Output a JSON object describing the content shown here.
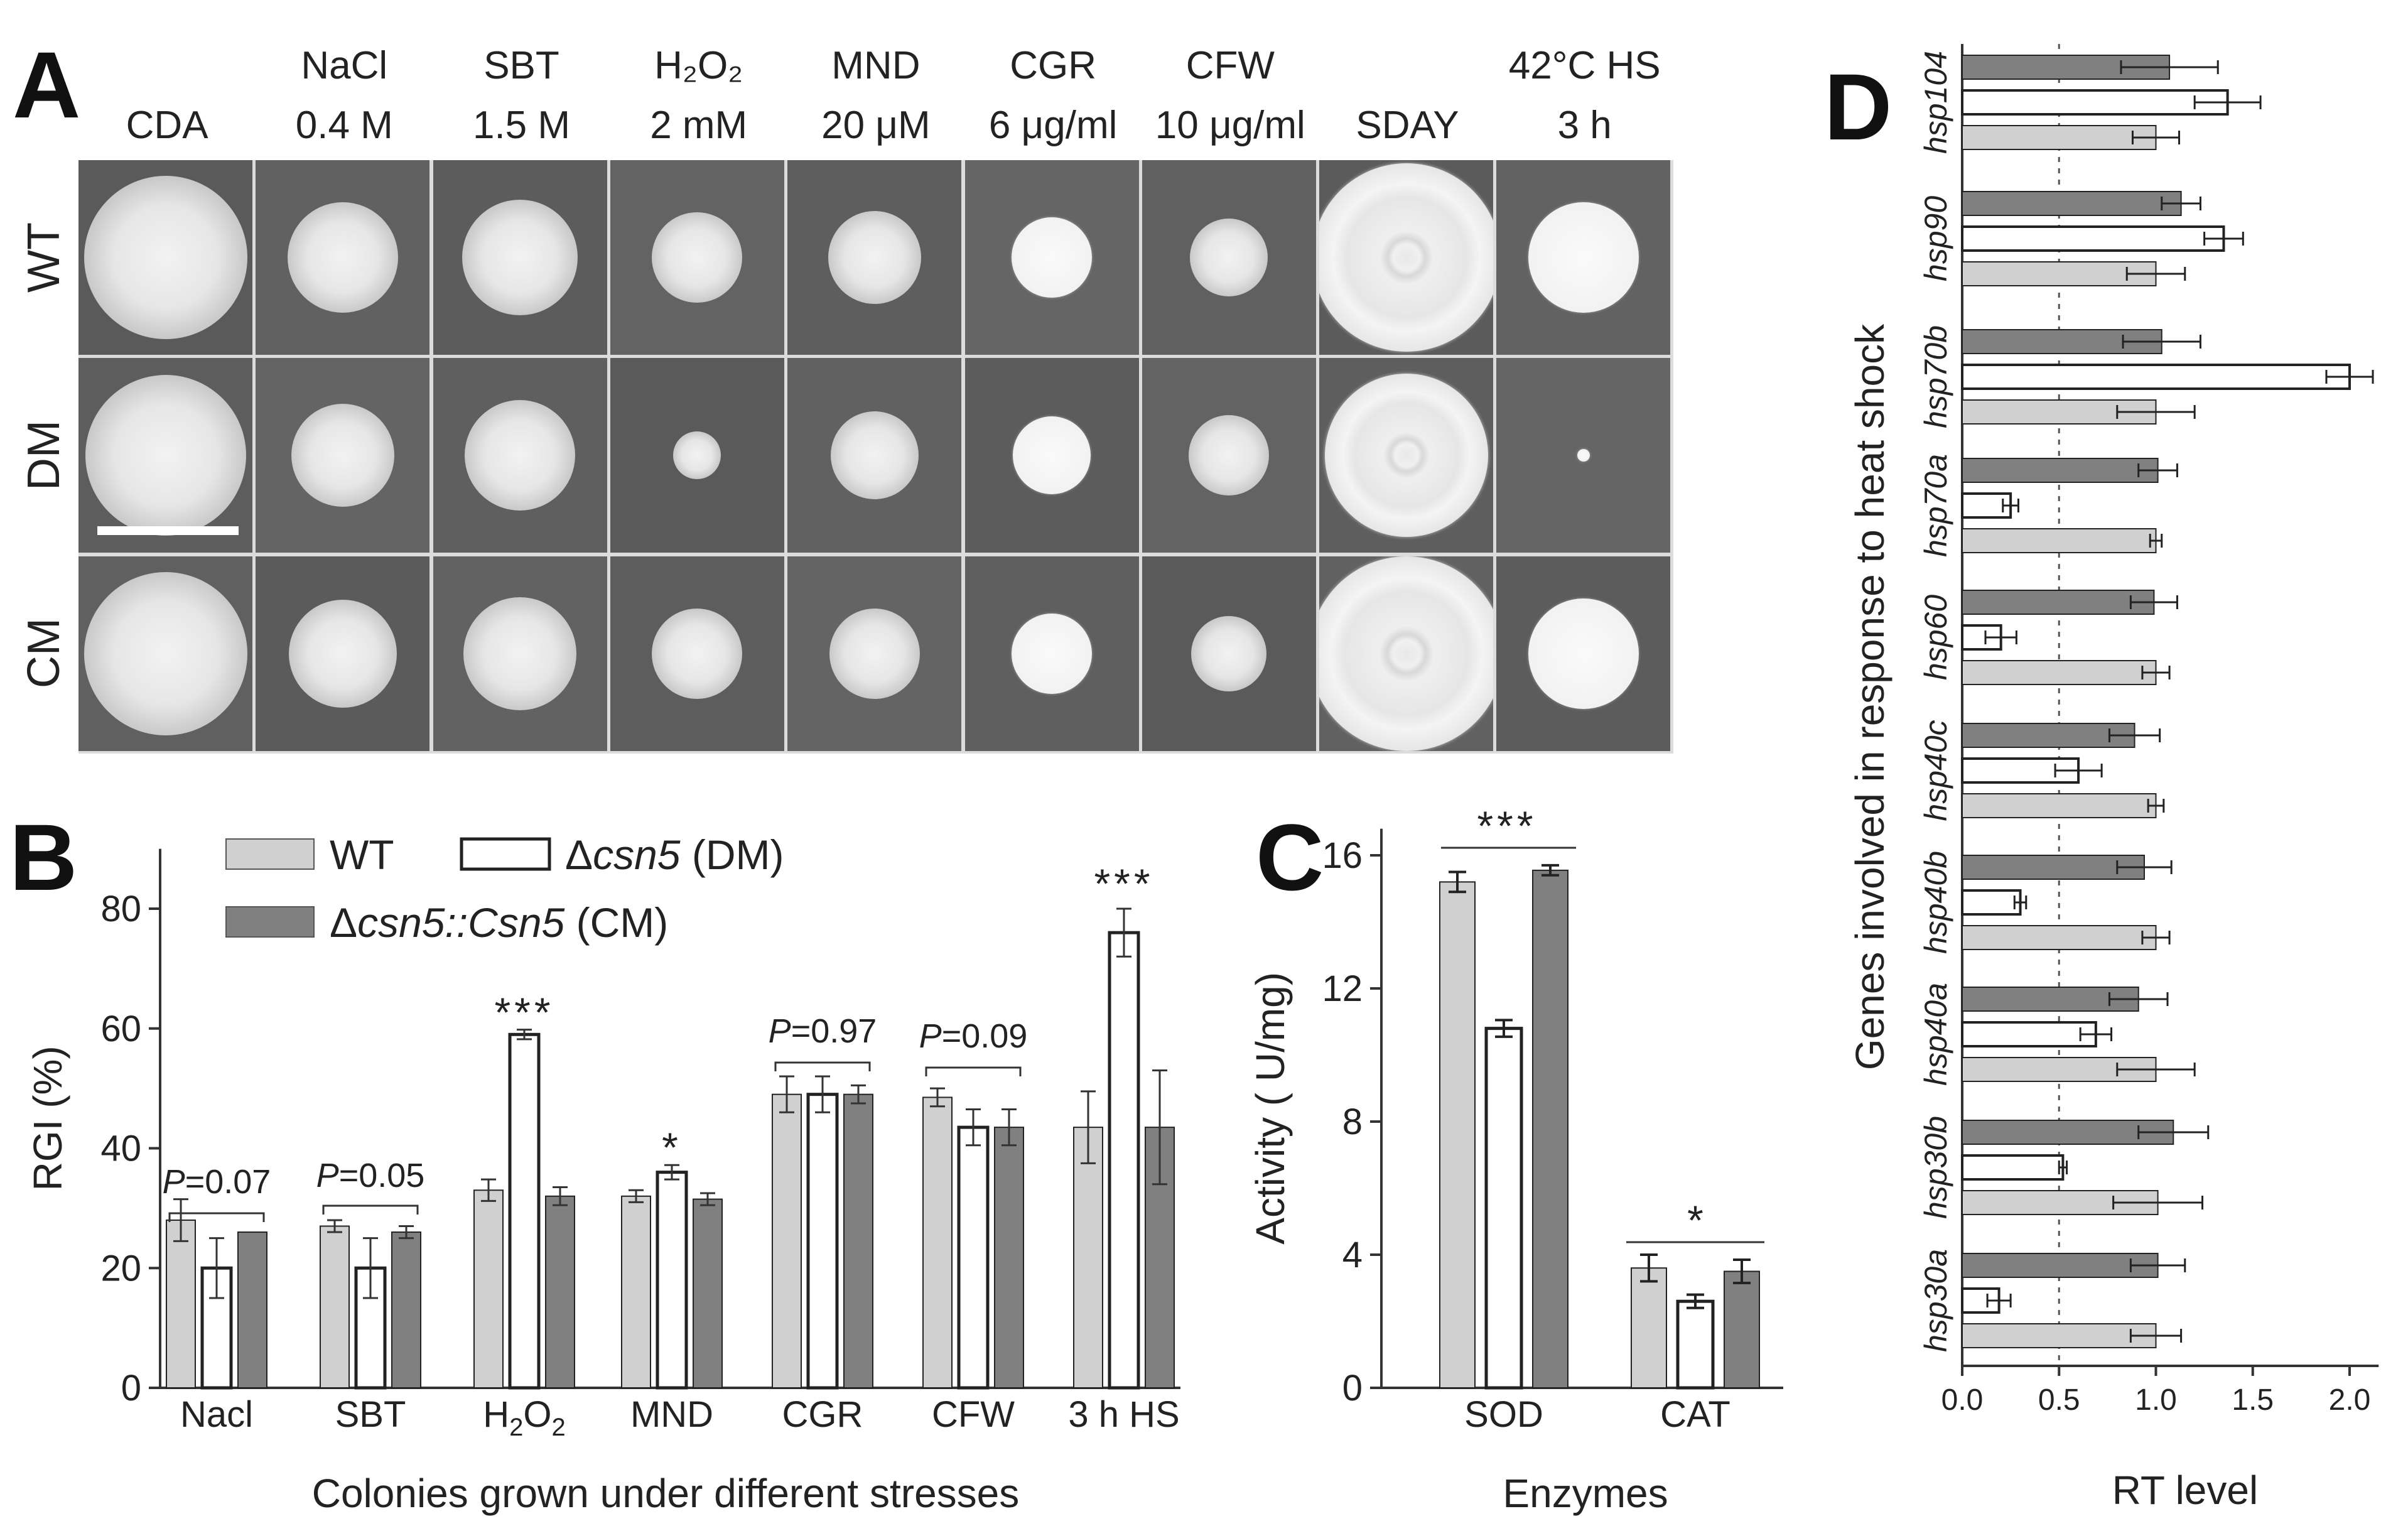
{
  "panels": {
    "A": "A",
    "B": "B",
    "C": "C",
    "D": "D"
  },
  "panelA": {
    "columns": [
      {
        "line1": "",
        "line2": "CDA"
      },
      {
        "line1": "NaCl",
        "line2": "0.4 M"
      },
      {
        "line1": "SBT",
        "line2": "1.5 M"
      },
      {
        "line1": "H₂O₂",
        "line2": "2 mM"
      },
      {
        "line1": "MND",
        "line2": "20 μM"
      },
      {
        "line1": "CGR",
        "line2": "6 μg/ml"
      },
      {
        "line1": "CFW",
        "line2": "10 μg/ml"
      },
      {
        "line1": "",
        "line2": "SDAY"
      },
      {
        "line1": "42°C  HS",
        "line2": "3 h"
      }
    ],
    "rows": [
      "WT",
      "DM",
      "CM"
    ]
  },
  "panelB": {
    "legend": {
      "wt": "WT",
      "dm_prefix": "Δ",
      "dm_gene": "csn5",
      "dm_suffix": " (DM)",
      "cm_prefix": "Δ",
      "cm_gene": "csn5::Csn5",
      "cm_suffix": " (CM)"
    },
    "annotations": [
      "P=0.07",
      "P=0.05",
      "***",
      "*",
      "P=0.97",
      "P=0.09",
      "***"
    ]
  },
  "panelC": {},
  "panelD": {},
  "chart_data": [
    {
      "id": "B",
      "type": "bar",
      "ylabel": "RGI (%)",
      "xlabel": "Colonies grown under different stresses",
      "ylim": [
        0,
        90
      ],
      "yticks": [
        "0",
        "20",
        "40",
        "60",
        "80"
      ],
      "categories": [
        "Nacl",
        "SBT",
        "H₂O₂",
        "MND",
        "CGR",
        "CFW",
        "3 h HS"
      ],
      "series": [
        {
          "name": "WT",
          "color": "#d0d0d0",
          "values": [
            28,
            27,
            33,
            32,
            49,
            48.5,
            43.5
          ],
          "errors": [
            3.5,
            1,
            1.8,
            1,
            3,
            1.5,
            6
          ]
        },
        {
          "name": "Δcsn5 (DM)",
          "color": "#ffffff",
          "values": [
            20,
            20,
            59,
            36,
            49,
            43.5,
            76
          ],
          "errors": [
            5,
            5,
            0.8,
            1.2,
            3,
            3,
            4
          ]
        },
        {
          "name": "Δcsn5::Csn5 (CM)",
          "color": "#808080",
          "values": [
            26,
            26,
            32,
            31.5,
            49,
            43.5,
            43.5
          ],
          "errors": [
            0,
            1,
            1.5,
            1,
            1.5,
            3,
            9.5
          ]
        }
      ]
    },
    {
      "id": "C",
      "type": "bar",
      "ylabel": "Activity ( U/mg)",
      "xlabel": "Enzymes",
      "ylim": [
        0,
        16.8
      ],
      "yticks": [
        "0",
        "4",
        "8",
        "12",
        "16"
      ],
      "categories": [
        "SOD",
        "CAT"
      ],
      "annotations": [
        "***",
        "*"
      ],
      "series": [
        {
          "name": "WT",
          "color": "#d0d0d0",
          "values": [
            15.2,
            3.6
          ],
          "errors": [
            0.3,
            0.4
          ]
        },
        {
          "name": "Δcsn5 (DM)",
          "color": "#ffffff",
          "values": [
            10.8,
            2.6
          ],
          "errors": [
            0.25,
            0.2
          ]
        },
        {
          "name": "Δcsn5::Csn5 (CM)",
          "color": "#808080",
          "values": [
            15.55,
            3.5
          ],
          "errors": [
            0.15,
            0.35
          ]
        }
      ]
    },
    {
      "id": "D",
      "type": "bar",
      "orientation": "horizontal",
      "xlabel": "RT level",
      "ylabel": "Genes involved in response to heat shock",
      "xlim": [
        0,
        2.15
      ],
      "xticks": [
        "0.0",
        "0.5",
        "1.0",
        "1.5",
        "2.0"
      ],
      "reference_line": 0.5,
      "categories": [
        "hsp104",
        "hsp90",
        "hsp70b",
        "hsp70a",
        "hsp60",
        "hsp40c",
        "hsp40b",
        "hsp40a",
        "hsp30b",
        "hsp30a"
      ],
      "series": [
        {
          "name": "CM",
          "color": "#808080",
          "values": [
            1.07,
            1.13,
            1.03,
            1.01,
            0.99,
            0.89,
            0.94,
            0.91,
            1.09,
            1.01
          ],
          "errors": [
            0.25,
            0.1,
            0.2,
            0.1,
            0.12,
            0.13,
            0.14,
            0.15,
            0.18,
            0.14
          ]
        },
        {
          "name": "DM",
          "color": "#ffffff",
          "values": [
            1.37,
            1.35,
            2.0,
            0.25,
            0.2,
            0.6,
            0.3,
            0.69,
            0.52,
            0.19
          ],
          "errors": [
            0.17,
            0.1,
            0.12,
            0.04,
            0.08,
            0.12,
            0.03,
            0.08,
            0.02,
            0.06
          ]
        },
        {
          "name": "WT",
          "color": "#d0d0d0",
          "values": [
            1.0,
            1.0,
            1.0,
            1.0,
            1.0,
            1.0,
            1.0,
            1.0,
            1.01,
            1.0
          ],
          "errors": [
            0.12,
            0.15,
            0.2,
            0.03,
            0.07,
            0.04,
            0.07,
            0.2,
            0.23,
            0.13
          ]
        }
      ]
    }
  ]
}
